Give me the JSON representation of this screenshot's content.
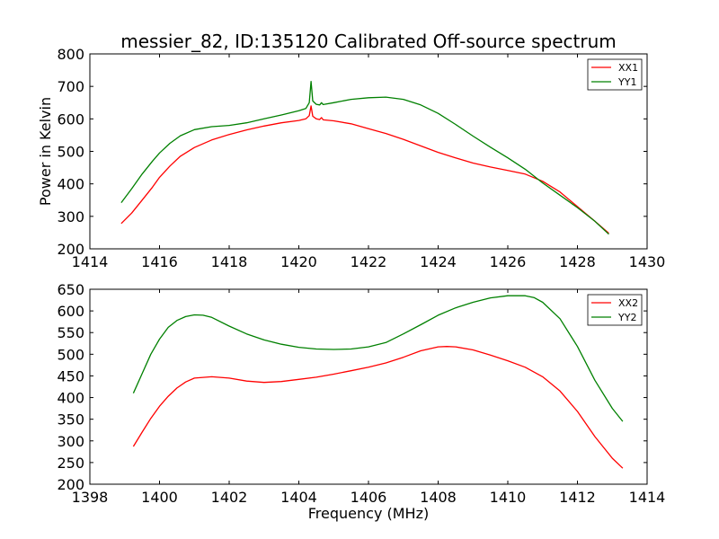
{
  "title": "messier_82, ID:135120 Calibrated Off-source spectrum",
  "chart_data": [
    {
      "type": "line",
      "title": "messier_82, ID:135120 Calibrated Off-source spectrum",
      "xlabel": "",
      "ylabel": "Power in Kelvin",
      "xlim": [
        1414,
        1430
      ],
      "ylim": [
        200,
        800
      ],
      "xticks": [
        "1414",
        "1416",
        "1418",
        "1420",
        "1422",
        "1424",
        "1426",
        "1428",
        "1430"
      ],
      "yticks": [
        "200",
        "300",
        "400",
        "500",
        "600",
        "700",
        "800"
      ],
      "legend_position": "top-right",
      "series": [
        {
          "name": "XX1",
          "color": "#ff0000",
          "x": [
            1414.9,
            1415.2,
            1415.5,
            1415.8,
            1416.0,
            1416.3,
            1416.6,
            1417.0,
            1417.5,
            1418.0,
            1418.5,
            1419.0,
            1419.5,
            1420.0,
            1420.2,
            1420.3,
            1420.35,
            1420.4,
            1420.5,
            1420.6,
            1420.65,
            1420.7,
            1421.0,
            1421.5,
            1422.0,
            1422.5,
            1423.0,
            1423.5,
            1424.0,
            1424.5,
            1425.0,
            1425.5,
            1426.0,
            1426.5,
            1427.0,
            1427.5,
            1428.0,
            1428.5,
            1428.9
          ],
          "y": [
            278,
            310,
            350,
            390,
            420,
            455,
            485,
            512,
            535,
            552,
            566,
            578,
            588,
            595,
            600,
            610,
            640,
            608,
            600,
            598,
            604,
            597,
            594,
            585,
            570,
            555,
            537,
            517,
            497,
            480,
            464,
            452,
            441,
            430,
            408,
            375,
            330,
            285,
            248
          ]
        },
        {
          "name": "YY1",
          "color": "#008000",
          "x": [
            1414.9,
            1415.2,
            1415.5,
            1415.8,
            1416.0,
            1416.3,
            1416.6,
            1417.0,
            1417.5,
            1418.0,
            1418.5,
            1419.0,
            1419.5,
            1420.0,
            1420.2,
            1420.3,
            1420.35,
            1420.4,
            1420.5,
            1420.6,
            1420.65,
            1420.7,
            1421.0,
            1421.5,
            1422.0,
            1422.5,
            1423.0,
            1423.5,
            1424.0,
            1424.5,
            1425.0,
            1425.5,
            1426.0,
            1426.5,
            1427.0,
            1427.5,
            1428.0,
            1428.5,
            1428.9
          ],
          "y": [
            342,
            385,
            430,
            470,
            495,
            525,
            548,
            567,
            576,
            580,
            588,
            600,
            612,
            625,
            632,
            650,
            715,
            655,
            645,
            643,
            650,
            644,
            650,
            660,
            665,
            667,
            660,
            643,
            617,
            583,
            547,
            513,
            480,
            445,
            403,
            365,
            327,
            285,
            245
          ]
        }
      ]
    },
    {
      "type": "line",
      "title": "",
      "xlabel": "Frequency (MHz)",
      "ylabel": "",
      "xlim": [
        1398,
        1414
      ],
      "ylim": [
        200,
        650
      ],
      "xticks": [
        "1398",
        "1400",
        "1402",
        "1404",
        "1406",
        "1408",
        "1410",
        "1412",
        "1414"
      ],
      "yticks": [
        "200",
        "250",
        "300",
        "350",
        "400",
        "450",
        "500",
        "550",
        "600",
        "650"
      ],
      "legend_position": "top-right",
      "series": [
        {
          "name": "XX2",
          "color": "#ff0000",
          "x": [
            1399.25,
            1399.5,
            1399.75,
            1400.0,
            1400.25,
            1400.5,
            1400.75,
            1401.0,
            1401.5,
            1402.0,
            1402.5,
            1403.0,
            1403.5,
            1404.0,
            1404.5,
            1405.0,
            1405.5,
            1406.0,
            1406.5,
            1407.0,
            1407.5,
            1408.0,
            1408.25,
            1408.5,
            1409.0,
            1409.5,
            1410.0,
            1410.5,
            1411.0,
            1411.5,
            1412.0,
            1412.5,
            1413.0,
            1413.3
          ],
          "y": [
            287,
            320,
            352,
            380,
            403,
            422,
            436,
            445,
            448,
            445,
            438,
            435,
            437,
            442,
            447,
            454,
            462,
            470,
            480,
            493,
            508,
            517,
            518,
            517,
            510,
            498,
            485,
            470,
            448,
            415,
            368,
            310,
            260,
            237
          ]
        },
        {
          "name": "YY2",
          "color": "#008000",
          "x": [
            1399.25,
            1399.5,
            1399.75,
            1400.0,
            1400.25,
            1400.5,
            1400.75,
            1401.0,
            1401.25,
            1401.5,
            1402.0,
            1402.5,
            1403.0,
            1403.5,
            1404.0,
            1404.5,
            1405.0,
            1405.5,
            1406.0,
            1406.5,
            1407.0,
            1407.5,
            1408.0,
            1408.5,
            1409.0,
            1409.5,
            1410.0,
            1410.5,
            1410.75,
            1411.0,
            1411.5,
            1412.0,
            1412.5,
            1413.0,
            1413.3
          ],
          "y": [
            410,
            455,
            500,
            535,
            562,
            578,
            587,
            591,
            590,
            585,
            565,
            547,
            533,
            523,
            516,
            512,
            511,
            512,
            517,
            527,
            547,
            568,
            590,
            607,
            620,
            630,
            635,
            635,
            631,
            620,
            582,
            518,
            440,
            375,
            345
          ]
        }
      ]
    }
  ]
}
